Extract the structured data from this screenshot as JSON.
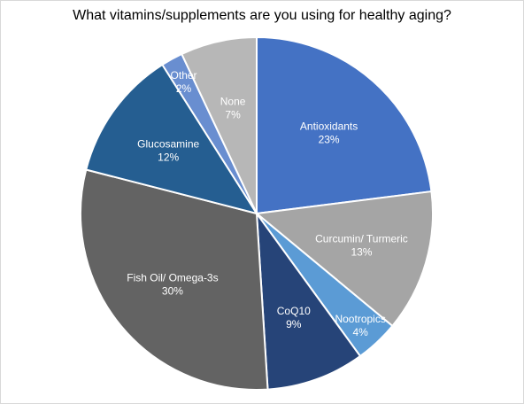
{
  "chart_data": {
    "type": "pie",
    "title": "What vitamins/supplements are you using for healthy aging?",
    "slices": [
      {
        "label": "Antioxidants",
        "value": 23,
        "display": "23%",
        "color": "#4472c4"
      },
      {
        "label": "Curcumin/ Turmeric",
        "value": 13,
        "display": "13%",
        "color": "#a5a5a5"
      },
      {
        "label": "Nootropics",
        "value": 4,
        "display": "4%",
        "color": "#5b9bd5"
      },
      {
        "label": "CoQ10",
        "value": 9,
        "display": "9%",
        "color": "#264478"
      },
      {
        "label": "Fish Oil/ Omega-3s",
        "value": 30,
        "display": "30%",
        "color": "#636363"
      },
      {
        "label": "Glucosamine",
        "value": 12,
        "display": "12%",
        "color": "#255e91"
      },
      {
        "label": "Other",
        "value": 2,
        "display": "2%",
        "color": "#698ed0"
      },
      {
        "label": "None",
        "value": 7,
        "display": "7%",
        "color": "#b7b7b7"
      }
    ]
  }
}
